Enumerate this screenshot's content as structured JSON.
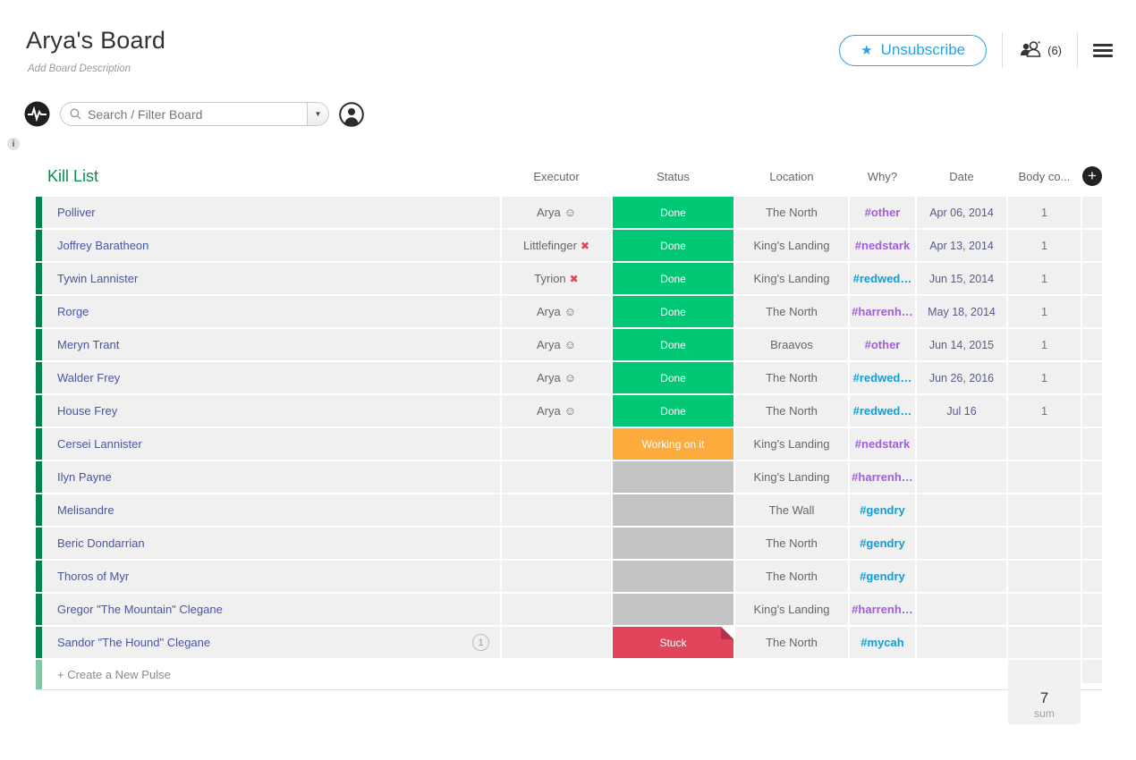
{
  "header": {
    "title": "Arya's Board",
    "description": "Add Board Description",
    "unsubscribe_label": "Unsubscribe",
    "unsubscribe_star": "★",
    "members_count": "(6)"
  },
  "toolbar": {
    "search_placeholder": "Search / Filter Board",
    "info_badge": "i"
  },
  "group": {
    "title": "Kill List",
    "columns": [
      "Executor",
      "Status",
      "Location",
      "Why?",
      "Date",
      "Body co..."
    ],
    "add_column_label": "+",
    "create_label": "+ Create a New Pulse",
    "sum_value": "7",
    "sum_label": "sum"
  },
  "status_labels": {
    "done": "Done",
    "working": "Working on it",
    "stuck": "Stuck",
    "empty": ""
  },
  "colors": {
    "done": "#00c875",
    "working": "#fdab3d",
    "stuck": "#e2445c",
    "empty": "#c4c4c4",
    "purple": "#a25ddc",
    "blue": "#0f9fd8",
    "group_green": "#00854d",
    "accent_blue": "#2aa1e0",
    "name_indigo": "#4a55a2"
  },
  "rows": [
    {
      "name": "Polliver",
      "badge": "",
      "executor": "Arya",
      "executor_icon": "smiley",
      "status": "done",
      "location": "The North",
      "tag": "#other",
      "tag_color": "purple",
      "date": "Apr 06, 2014",
      "body": "1"
    },
    {
      "name": "Joffrey Baratheon",
      "badge": "",
      "executor": "Littlefinger",
      "executor_icon": "x",
      "status": "done",
      "location": "King's Landing",
      "tag": "#nedstark",
      "tag_color": "purple",
      "date": "Apr 13, 2014",
      "body": "1"
    },
    {
      "name": "Tywin Lannister",
      "badge": "",
      "executor": "Tyrion",
      "executor_icon": "x",
      "status": "done",
      "location": "King's Landing",
      "tag": "#redwed…",
      "tag_color": "blue",
      "date": "Jun 15, 2014",
      "body": "1"
    },
    {
      "name": "Rorge",
      "badge": "",
      "executor": "Arya",
      "executor_icon": "smiley",
      "status": "done",
      "location": "The North",
      "tag": "#harrenh…",
      "tag_color": "purple",
      "date": "May 18, 2014",
      "body": "1"
    },
    {
      "name": "Meryn Trant",
      "badge": "",
      "executor": "Arya",
      "executor_icon": "smiley",
      "status": "done",
      "location": "Braavos",
      "tag": "#other",
      "tag_color": "purple",
      "date": "Jun 14, 2015",
      "body": "1"
    },
    {
      "name": "Walder Frey",
      "badge": "",
      "executor": "Arya",
      "executor_icon": "smiley",
      "status": "done",
      "location": "The North",
      "tag": "#redwed…",
      "tag_color": "blue",
      "date": "Jun 26, 2016",
      "body": "1"
    },
    {
      "name": "House Frey",
      "badge": "",
      "executor": "Arya",
      "executor_icon": "smiley",
      "status": "done",
      "location": "The North",
      "tag": "#redwed…",
      "tag_color": "blue",
      "date": "Jul 16",
      "body": "1"
    },
    {
      "name": "Cersei Lannister",
      "badge": "",
      "executor": "",
      "executor_icon": "",
      "status": "working",
      "location": "King's Landing",
      "tag": "#nedstark",
      "tag_color": "purple",
      "date": "",
      "body": ""
    },
    {
      "name": "Ilyn Payne",
      "badge": "",
      "executor": "",
      "executor_icon": "",
      "status": "empty",
      "location": "King's Landing",
      "tag": "#harrenh…",
      "tag_color": "purple",
      "date": "",
      "body": ""
    },
    {
      "name": "Melisandre",
      "badge": "",
      "executor": "",
      "executor_icon": "",
      "status": "empty",
      "location": "The Wall",
      "tag": "#gendry",
      "tag_color": "blue",
      "date": "",
      "body": ""
    },
    {
      "name": "Beric Dondarrian",
      "badge": "",
      "executor": "",
      "executor_icon": "",
      "status": "empty",
      "location": "The North",
      "tag": "#gendry",
      "tag_color": "blue",
      "date": "",
      "body": ""
    },
    {
      "name": "Thoros of Myr",
      "badge": "",
      "executor": "",
      "executor_icon": "",
      "status": "empty",
      "location": "The North",
      "tag": "#gendry",
      "tag_color": "blue",
      "date": "",
      "body": ""
    },
    {
      "name": "Gregor \"The Mountain\" Clegane",
      "badge": "",
      "executor": "",
      "executor_icon": "",
      "status": "empty",
      "location": "King's Landing",
      "tag": "#harrenh…",
      "tag_color": "purple",
      "date": "",
      "body": ""
    },
    {
      "name": "Sandor \"The Hound\" Clegane",
      "badge": "1",
      "executor": "",
      "executor_icon": "",
      "status": "stuck",
      "location": "The North",
      "tag": "#mycah",
      "tag_color": "blue",
      "date": "",
      "body": ""
    }
  ]
}
